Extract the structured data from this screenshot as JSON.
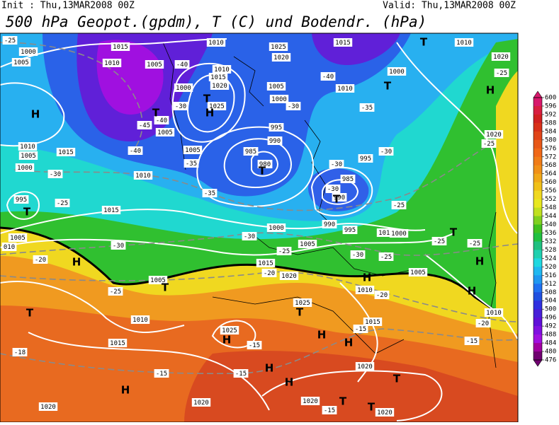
{
  "header": {
    "init": "Init : Thu,13MAR2008 00Z",
    "valid": "Valid: Thu,13MAR2008 00Z",
    "title": "500 hPa Geopot.(gpdm), T (C) und Bodendr. (hPa)"
  },
  "map": {
    "pressure_labels": [
      "1000",
      "1005",
      "1015",
      "1010",
      "1005",
      "1010",
      "1025",
      "1020",
      "1015",
      "1010",
      "1020",
      "1000",
      "1010",
      "1015",
      "1020",
      "1000",
      "1005",
      "1000",
      "1010",
      "1025",
      "1005",
      "1015",
      "1010",
      "1005",
      "1000",
      "1010",
      "1005",
      "995",
      "990",
      "985",
      "980",
      "995",
      "985",
      "990",
      "995",
      "1015",
      "1000",
      "990",
      "995",
      "1010",
      "1000",
      "1005",
      "010",
      "1005",
      "1015",
      "1020",
      "1005",
      "1005",
      "1010",
      "1010",
      "1025",
      "1010",
      "1015",
      "1015",
      "1025",
      "1020",
      "1020",
      "1020",
      "1020",
      "1020",
      "1020"
    ],
    "temperature_labels": [
      "-25",
      "-40",
      "-45",
      "-40",
      "-40",
      "-30",
      "-35",
      "-30",
      "-40",
      "-35",
      "-30",
      "-35",
      "-25",
      "-30",
      "-30",
      "-25",
      "-30",
      "-30",
      "-25",
      "-30",
      "-25",
      "-25",
      "-25",
      "-20",
      "-20",
      "-25",
      "-20",
      "-20",
      "-15",
      "-15",
      "-15",
      "-15",
      "-15",
      "-15",
      "-18",
      "-25",
      "-25",
      "-30"
    ],
    "centers": [
      "H",
      "T",
      "H",
      "T",
      "T",
      "H",
      "T",
      "T",
      "H",
      "T",
      "T",
      "H",
      "T",
      "T",
      "H",
      "H",
      "H",
      "T",
      "H",
      "T",
      "H",
      "H",
      "H",
      "H",
      "T",
      "T",
      "T"
    ]
  },
  "colorbar": {
    "levels": [
      600,
      596,
      592,
      588,
      584,
      580,
      576,
      572,
      568,
      564,
      560,
      556,
      552,
      548,
      544,
      540,
      536,
      532,
      528,
      524,
      520,
      516,
      512,
      508,
      504,
      500,
      496,
      492,
      488,
      484,
      480,
      476
    ],
    "colors": [
      "#d8186c",
      "#d81e40",
      "#d02020",
      "#d83018",
      "#e04418",
      "#e85818",
      "#f06818",
      "#f07c18",
      "#f09018",
      "#f0a818",
      "#f0c018",
      "#f0d820",
      "#e8e820",
      "#c0e020",
      "#80d020",
      "#40c020",
      "#20c040",
      "#20c080",
      "#20d0b0",
      "#20d8e0",
      "#20b8f0",
      "#2098f0",
      "#2070f0",
      "#2050e0",
      "#3030e0",
      "#4820d8",
      "#6010d8",
      "#8010e0",
      "#a010e0",
      "#a000a0",
      "#700070"
    ]
  }
}
